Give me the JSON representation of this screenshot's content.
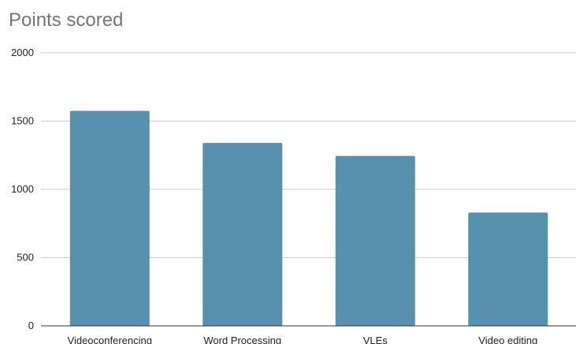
{
  "chart_data": {
    "type": "bar",
    "title": "Points scored",
    "categories": [
      "Videoconferencing",
      "Word Processing",
      "VLEs",
      "Video editing"
    ],
    "values": [
      1575,
      1340,
      1245,
      830
    ],
    "ylim": [
      0,
      2000
    ],
    "yticks": [
      0,
      500,
      1000,
      1500,
      2000
    ],
    "grid": true,
    "legend": "none",
    "bar_color": "#5891ad",
    "gridline_color": "#cccccc",
    "axis_color": "#333333",
    "title_color": "#757575",
    "text_color": "#222222"
  }
}
